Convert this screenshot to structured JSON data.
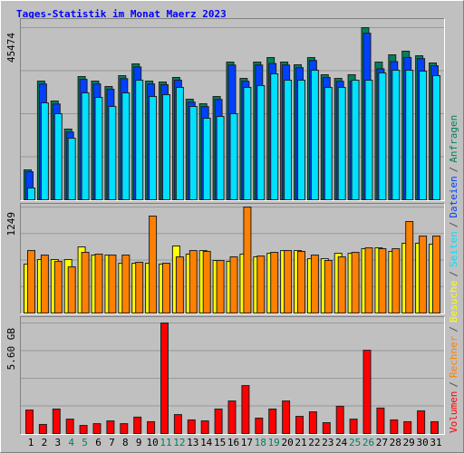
{
  "title": "Tages-Statistik im Monat Maerz 2023",
  "categories": [
    "1",
    "2",
    "3",
    "4",
    "5",
    "6",
    "7",
    "8",
    "9",
    "10",
    "11",
    "12",
    "13",
    "14",
    "15",
    "16",
    "17",
    "18",
    "19",
    "20",
    "21",
    "22",
    "23",
    "24",
    "25",
    "26",
    "27",
    "28",
    "29",
    "30",
    "31"
  ],
  "weekend_color": "#00805c",
  "weekday_color": "#000000",
  "weekends": [
    4,
    5,
    11,
    12,
    18,
    19,
    25,
    26
  ],
  "legend_separator": "/",
  "chart_data": [
    {
      "type": "bar",
      "ylim": [
        0,
        45474
      ],
      "yticks": [
        45474
      ],
      "grid": true,
      "series": [
        {
          "name": "Anfragen",
          "color": "#00805c",
          "values": [
            7900,
            31350,
            26090,
            18670,
            32550,
            31350,
            29920,
            32790,
            35900,
            31350,
            31110,
            32310,
            26570,
            25370,
            27280,
            36380,
            32070,
            36380,
            37570,
            36380,
            35660,
            37570,
            33030,
            32070,
            33030,
            45474,
            36380,
            38290,
            39250,
            38050,
            36140
          ]
        },
        {
          "name": "Dateien",
          "color": "#0040ff",
          "values": [
            7400,
            30600,
            25300,
            17900,
            31800,
            30600,
            29200,
            32000,
            35100,
            30600,
            30400,
            31600,
            25800,
            24600,
            26500,
            35600,
            31300,
            35600,
            36000,
            35600,
            34900,
            36800,
            32300,
            31300,
            31300,
            44000,
            34600,
            36500,
            37600,
            37300,
            35400
          ]
        },
        {
          "name": "Seiten",
          "color": "#00e0ff",
          "values": [
            3110,
            25610,
            22740,
            16270,
            28240,
            27040,
            24650,
            28240,
            31590,
            27280,
            27760,
            29680,
            24650,
            21540,
            22020,
            22740,
            29680,
            30160,
            33270,
            31590,
            31590,
            34220,
            29680,
            29680,
            31590,
            31590,
            33510,
            34220,
            34220,
            33990,
            32790
          ]
        }
      ]
    },
    {
      "type": "bar",
      "ylim": [
        0,
        1249
      ],
      "yticks": [
        1249
      ],
      "grid": true,
      "series": [
        {
          "name": "Besuche",
          "color": "#ffff00",
          "values": [
            576,
            630,
            630,
            630,
            779,
            683,
            683,
            587,
            587,
            587,
            576,
            790,
            694,
            736,
            619,
            608,
            694,
            662,
            704,
            736,
            736,
            640,
            640,
            704,
            704,
            758,
            768,
            726,
            822,
            822,
            811
          ]
        },
        {
          "name": "Rechner",
          "color": "#ff8000",
          "values": [
            736,
            683,
            608,
            544,
            715,
            694,
            683,
            683,
            598,
            1142,
            587,
            662,
            736,
            726,
            619,
            662,
            1249,
            672,
            715,
            736,
            726,
            683,
            619,
            662,
            715,
            768,
            758,
            758,
            1078,
            907,
            907
          ]
        }
      ]
    },
    {
      "type": "bar",
      "ylim": [
        0,
        5.6
      ],
      "yticks": [
        {
          "value": 5.6,
          "label": "5.60 GB"
        }
      ],
      "grid": true,
      "series": [
        {
          "name": "Volumen",
          "color": "#ff0000",
          "values": [
            1.19,
            0.46,
            1.24,
            0.73,
            0.41,
            0.5,
            0.64,
            0.5,
            0.83,
            0.6,
            5.6,
            0.96,
            0.69,
            0.64,
            1.24,
            1.65,
            2.43,
            0.78,
            1.24,
            1.65,
            0.87,
            1.1,
            0.55,
            1.38,
            0.73,
            4.22,
            1.29,
            0.69,
            0.6,
            1.15,
            0.6
          ]
        }
      ]
    }
  ]
}
